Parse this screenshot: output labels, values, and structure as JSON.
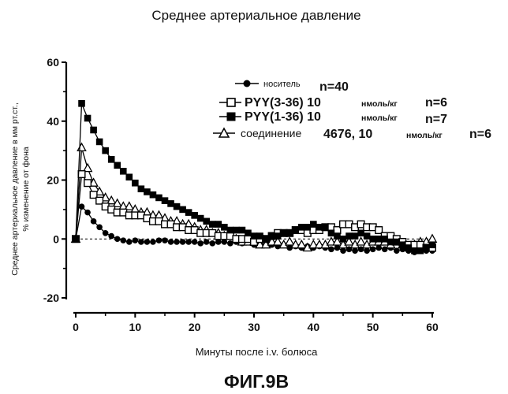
{
  "chart_data": {
    "type": "line",
    "title": "Среднее артериальное давление",
    "figure_label": "ФИГ.9В",
    "xlabel": "Минуты после i.v. болюса",
    "ylabel_line1": "Среднее артериальное давление в мм рт.ст.,",
    "ylabel_line2": "% изменение от фона",
    "xlim": [
      -2,
      61
    ],
    "ylim": [
      -20,
      60
    ],
    "x_ticks": [
      0,
      10,
      20,
      30,
      40,
      50,
      60
    ],
    "y_ticks": [
      -20,
      0,
      20,
      40,
      60
    ],
    "baseline": 0,
    "legend": {
      "placement": "top-right",
      "entries": [
        {
          "label": "носитель",
          "dose": "",
          "unit": "",
          "n": "n=40"
        },
        {
          "label": "PYY(3-36) 10",
          "dose": "",
          "unit": "нмоль/кг",
          "n": "n=6"
        },
        {
          "label": "PYY(1-36) 10",
          "dose": "",
          "unit": "нмоль/кг",
          "n": "n=7"
        },
        {
          "label": "соединение",
          "dose": "4676, 10",
          "unit": "нмоль/кг",
          "n": "n=6"
        }
      ]
    },
    "series": [
      {
        "marker": "filled-circle",
        "x": [
          0,
          1,
          2,
          3,
          4,
          5,
          6,
          7,
          8,
          9,
          10,
          11,
          12,
          13,
          14,
          15,
          16,
          17,
          18,
          19,
          20,
          21,
          22,
          23,
          24,
          25,
          26,
          27,
          28,
          29,
          30,
          31,
          32,
          33,
          34,
          35,
          36,
          37,
          38,
          39,
          40,
          41,
          42,
          43,
          44,
          45,
          46,
          47,
          48,
          49,
          50,
          51,
          52,
          53,
          54,
          55,
          56,
          57,
          58,
          59,
          60
        ],
        "y": [
          0,
          11,
          9,
          6,
          4,
          2,
          1,
          0,
          -0.5,
          -1,
          -0.5,
          -1,
          -1,
          -1,
          -0.5,
          -0.5,
          -1,
          -1,
          -1,
          -1,
          -1,
          -1.5,
          -1,
          -1.5,
          -1,
          -1,
          -1.5,
          -1,
          -1.5,
          -1,
          -2,
          -1.5,
          -2,
          -2,
          -2.5,
          -2,
          -3,
          -2.5,
          -3,
          -2.5,
          -3,
          -2.5,
          -3,
          -3.5,
          -3,
          -4,
          -3.5,
          -4,
          -3.5,
          -4,
          -3.5,
          -3,
          -3.5,
          -3,
          -4,
          -3.5,
          -4,
          -4.5,
          -4,
          -4,
          -4
        ]
      },
      {
        "marker": "open-square",
        "x": [
          0,
          1,
          2,
          3,
          4,
          5,
          6,
          7,
          8,
          9,
          10,
          11,
          12,
          13,
          14,
          15,
          16,
          17,
          18,
          19,
          20,
          21,
          22,
          23,
          24,
          25,
          26,
          27,
          28,
          29,
          30,
          31,
          32,
          33,
          34,
          35,
          36,
          37,
          38,
          39,
          40,
          41,
          42,
          43,
          44,
          45,
          46,
          47,
          48,
          49,
          50,
          51,
          52,
          53,
          54,
          55,
          56,
          57,
          58,
          59,
          60
        ],
        "y": [
          0,
          22,
          19,
          15,
          13,
          11,
          10,
          9,
          9,
          8,
          8,
          8,
          7,
          6,
          6,
          5,
          5,
          4,
          4,
          3,
          3,
          2,
          2,
          2,
          1,
          1,
          1,
          0,
          0,
          0,
          -1,
          0,
          0,
          1,
          2,
          2,
          2,
          3,
          3,
          2,
          3,
          3,
          4,
          4,
          3,
          5,
          5,
          4,
          5,
          4,
          4,
          3,
          1,
          1,
          0,
          -1,
          -2,
          -2,
          -2,
          -3,
          -3
        ]
      },
      {
        "marker": "filled-square",
        "x": [
          0,
          1,
          2,
          3,
          4,
          5,
          6,
          7,
          8,
          9,
          10,
          11,
          12,
          13,
          14,
          15,
          16,
          17,
          18,
          19,
          20,
          21,
          22,
          23,
          24,
          25,
          26,
          27,
          28,
          29,
          30,
          31,
          32,
          33,
          34,
          35,
          36,
          37,
          38,
          39,
          40,
          41,
          42,
          43,
          44,
          45,
          46,
          47,
          48,
          49,
          50,
          51,
          52,
          53,
          54,
          55,
          56,
          57,
          58,
          59,
          60
        ],
        "y": [
          0,
          46,
          41,
          37,
          33,
          30,
          27,
          25,
          23,
          21,
          19,
          17,
          16,
          15,
          14,
          13,
          12,
          11,
          10,
          9,
          8,
          7,
          6,
          5,
          5,
          4,
          3,
          3,
          3,
          2,
          1,
          1,
          0,
          1,
          1,
          2,
          2,
          3,
          4,
          4,
          5,
          4,
          4,
          2,
          1,
          0,
          1,
          1,
          2,
          1,
          0,
          0,
          0,
          -1,
          -1,
          -2,
          -3,
          -4,
          -4,
          -3,
          -2
        ]
      },
      {
        "marker": "open-triangle",
        "x": [
          0,
          1,
          2,
          3,
          4,
          5,
          6,
          7,
          8,
          9,
          10,
          11,
          12,
          13,
          14,
          15,
          16,
          17,
          18,
          19,
          20,
          21,
          22,
          23,
          24,
          25,
          26,
          27,
          28,
          29,
          30,
          31,
          32,
          33,
          34,
          35,
          36,
          37,
          38,
          39,
          40,
          41,
          42,
          43,
          44,
          45,
          46,
          47,
          48,
          49,
          50,
          51,
          52,
          53,
          54,
          55,
          56,
          57,
          58,
          59,
          60
        ],
        "y": [
          0,
          31,
          24,
          19,
          16,
          14,
          13,
          12,
          11,
          11,
          10,
          9,
          9,
          8,
          8,
          7,
          6,
          6,
          5,
          5,
          4,
          3,
          3,
          2,
          2,
          1,
          1,
          0,
          -1,
          -1,
          -1,
          -2,
          -2,
          -1,
          -1,
          -2,
          -1,
          -2,
          -2,
          -3,
          -2,
          -2,
          -2,
          -1,
          -1,
          -2,
          -1,
          -2,
          -1,
          -2,
          -1,
          -1,
          -1,
          -2,
          -1,
          -2,
          -3,
          -2,
          -1,
          -1,
          0
        ]
      }
    ]
  }
}
